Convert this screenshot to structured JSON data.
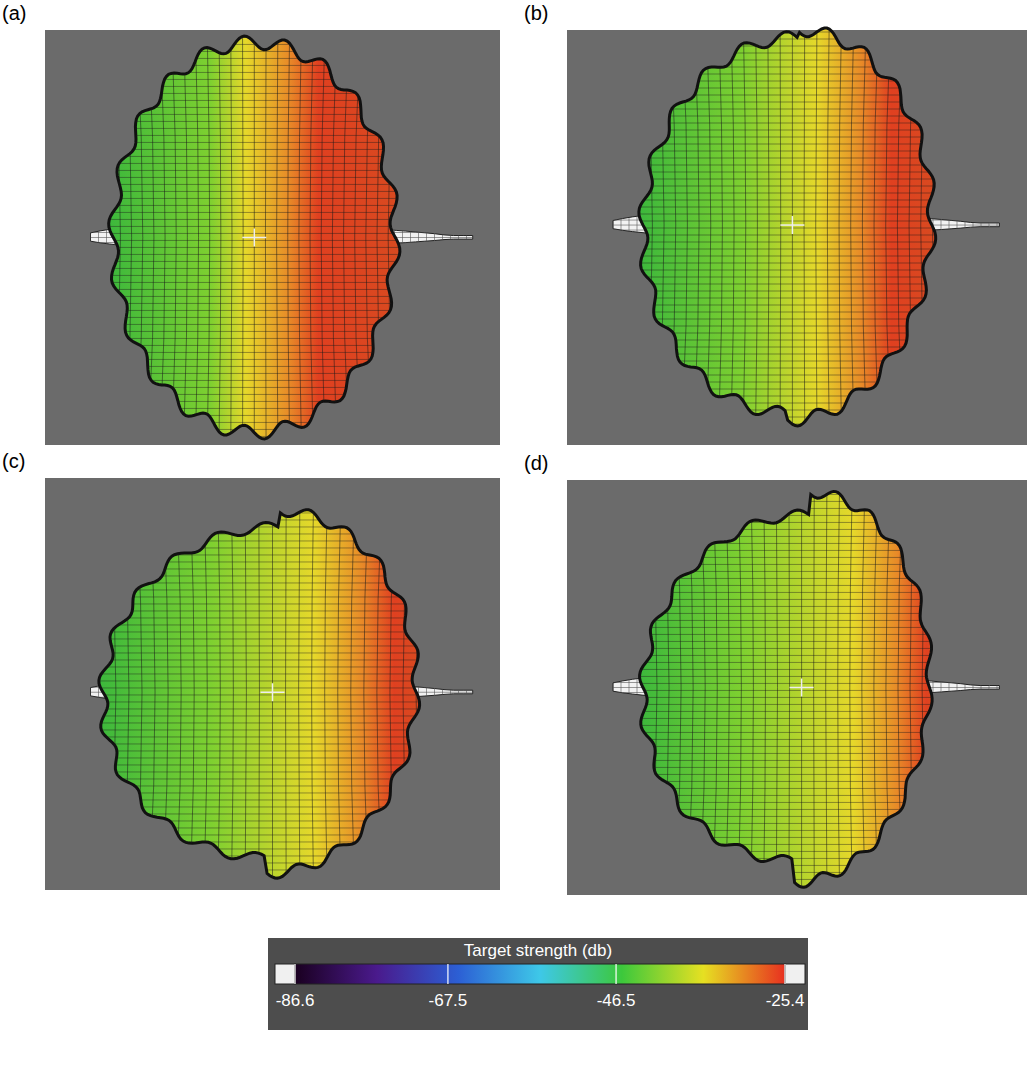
{
  "chart_data": {
    "type": "surface",
    "panels": [
      {
        "label": "(a)"
      },
      {
        "label": "(b)"
      },
      {
        "label": "(c)"
      },
      {
        "label": "(d)"
      }
    ],
    "colorbar": {
      "title": "Target strength (db)",
      "range": [
        -86.6,
        -25.4
      ],
      "ticks": [
        -86.6,
        -67.5,
        -46.5,
        -25.4
      ],
      "colors": [
        "#1a0020",
        "#4a1a8c",
        "#2c5fd4",
        "#3ec8e8",
        "#3cc83c",
        "#e6e022",
        "#e83020"
      ]
    }
  }
}
